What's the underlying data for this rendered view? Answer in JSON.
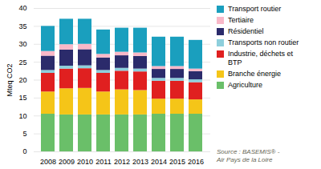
{
  "chart_data": {
    "type": "bar",
    "stacked": true,
    "categories": [
      "2008",
      "2009",
      "2010",
      "2011",
      "2012",
      "2013",
      "2014",
      "2015",
      "2016"
    ],
    "series": [
      {
        "name": "Agriculture",
        "color": "#6abf69",
        "values": [
          10.5,
          10.3,
          10.3,
          10.3,
          10.3,
          10.3,
          10.5,
          10.5,
          10.5
        ]
      },
      {
        "name": "Branche énergie",
        "color": "#f5c518",
        "values": [
          6.2,
          7.3,
          7.4,
          6.4,
          7.0,
          6.8,
          4.2,
          4.2,
          4.0
        ]
      },
      {
        "name": "Industrie, déchets et\nBTP",
        "color": "#e02020",
        "values": [
          5.2,
          5.5,
          5.5,
          5.2,
          5.2,
          5.2,
          5.0,
          5.0,
          4.8
        ]
      },
      {
        "name": "Transports non routier",
        "color": "#8ecfdc",
        "values": [
          0.8,
          0.8,
          0.8,
          0.8,
          0.8,
          0.8,
          0.8,
          0.8,
          0.8
        ]
      },
      {
        "name": "Résidentiel",
        "color": "#2b2b6b",
        "values": [
          4.0,
          4.5,
          4.5,
          3.5,
          3.5,
          3.5,
          2.5,
          2.5,
          2.3
        ]
      },
      {
        "name": "Tertiaire",
        "color": "#f9b8c8",
        "values": [
          1.3,
          1.5,
          1.5,
          1.0,
          1.0,
          1.0,
          0.8,
          0.8,
          0.7
        ]
      },
      {
        "name": "Transport routier",
        "color": "#1a9fbe",
        "values": [
          7.0,
          7.1,
          7.0,
          6.8,
          6.7,
          6.9,
          8.2,
          8.2,
          8.0
        ]
      }
    ],
    "ylabel": "Mteq CO2",
    "ylim": [
      0,
      40
    ],
    "yticks": [
      0,
      5,
      10,
      15,
      20,
      25,
      30,
      35,
      40
    ],
    "grid": true,
    "legend": "right",
    "annotations": [
      "Source : BASEMIS® -\nAir Pays de la Loire"
    ]
  }
}
